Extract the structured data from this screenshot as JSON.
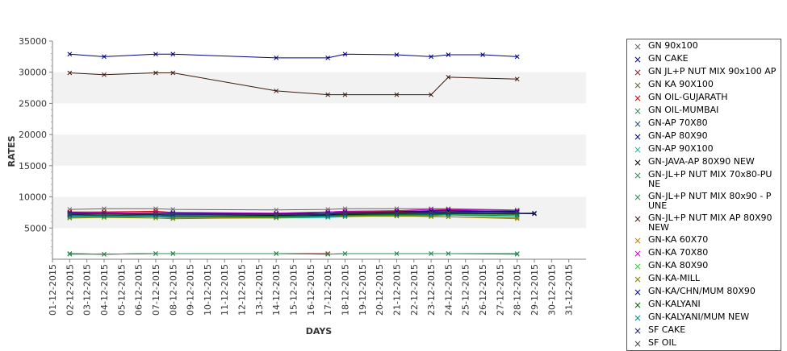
{
  "chart_data": {
    "type": "line",
    "xlabel": "DAYS",
    "ylabel": "RATES",
    "ylim": [
      0,
      35000
    ],
    "yticks": [
      5000,
      10000,
      15000,
      20000,
      25000,
      30000,
      35000
    ],
    "x": [
      "01-12-2015",
      "02-12-2015",
      "03-12-2015",
      "04-12-2015",
      "05-12-2015",
      "06-12-2015",
      "07-12-2015",
      "08-12-2015",
      "09-12-2015",
      "10-12-2015",
      "11-12-2015",
      "12-12-2015",
      "13-12-2015",
      "14-12-2015",
      "15-12-2015",
      "16-12-2015",
      "17-12-2015",
      "18-12-2015",
      "19-12-2015",
      "20-12-2015",
      "21-12-2015",
      "22-12-2015",
      "23-12-2015",
      "24-12-2015",
      "25-12-2015",
      "26-12-2015",
      "27-12-2015",
      "28-12-2015",
      "29-12-2015",
      "30-12-2015",
      "31-12-2015"
    ],
    "grid": "alternating horizontal bands",
    "legend": "right",
    "series": [
      {
        "name": "GN 90x100",
        "color": "#666666",
        "points": [
          [
            2,
            8000
          ],
          [
            4,
            8100
          ],
          [
            7,
            8100
          ],
          [
            8,
            8000
          ],
          [
            14,
            7900
          ],
          [
            17,
            8000
          ],
          [
            18,
            8100
          ],
          [
            21,
            8100
          ],
          [
            23,
            8100
          ],
          [
            24,
            8100
          ],
          [
            28,
            7900
          ]
        ]
      },
      {
        "name": "GN CAKE",
        "color": "#000080",
        "points": [
          [
            2,
            32900
          ],
          [
            4,
            32500
          ],
          [
            7,
            32900
          ],
          [
            8,
            32900
          ],
          [
            14,
            32300
          ],
          [
            17,
            32300
          ],
          [
            18,
            32900
          ],
          [
            21,
            32800
          ],
          [
            23,
            32500
          ],
          [
            24,
            32800
          ],
          [
            26,
            32800
          ],
          [
            28,
            32500
          ]
        ]
      },
      {
        "name": "GN JL+P NUT MIX 90x100 AP",
        "color": "#8b1a1a",
        "points": [
          [
            2,
            900
          ],
          [
            4,
            800
          ],
          [
            7,
            900
          ],
          [
            8,
            900
          ],
          [
            14,
            900
          ],
          [
            17,
            900
          ]
        ]
      },
      {
        "name": "GN KA 90X100",
        "color": "#556b2f",
        "points": [
          [
            2,
            7400
          ],
          [
            4,
            7500
          ],
          [
            7,
            7400
          ],
          [
            8,
            7300
          ],
          [
            14,
            7200
          ],
          [
            17,
            7400
          ],
          [
            18,
            7600
          ],
          [
            21,
            7600
          ],
          [
            23,
            7800
          ],
          [
            24,
            7700
          ],
          [
            28,
            7700
          ]
        ]
      },
      {
        "name": "GN OIL-GUJARATH",
        "color": "#cc0000",
        "points": [
          [
            2,
            7600
          ],
          [
            4,
            7600
          ],
          [
            7,
            7700
          ],
          [
            8,
            7500
          ],
          [
            14,
            7300
          ],
          [
            17,
            7600
          ],
          [
            18,
            7700
          ],
          [
            21,
            7700
          ],
          [
            23,
            7800
          ],
          [
            24,
            7900
          ],
          [
            28,
            7800
          ]
        ]
      },
      {
        "name": "GN OIL-MUMBAI",
        "color": "#2e8b57",
        "points": [
          [
            2,
            7200
          ],
          [
            4,
            7100
          ],
          [
            7,
            7200
          ],
          [
            8,
            7200
          ],
          [
            14,
            7000
          ],
          [
            17,
            7200
          ],
          [
            18,
            7300
          ],
          [
            21,
            7300
          ],
          [
            23,
            7400
          ],
          [
            24,
            7300
          ],
          [
            28,
            7300
          ]
        ]
      },
      {
        "name": "GN-AP 70X80",
        "color": "#1f4e79",
        "points": [
          [
            2,
            7000
          ],
          [
            4,
            7000
          ],
          [
            7,
            7000
          ],
          [
            8,
            6900
          ],
          [
            14,
            6800
          ],
          [
            17,
            7000
          ],
          [
            18,
            7100
          ],
          [
            21,
            7200
          ],
          [
            23,
            7200
          ],
          [
            24,
            7300
          ],
          [
            28,
            7400
          ]
        ]
      },
      {
        "name": "GN-AP 80X90",
        "color": "#00008b",
        "points": [
          [
            2,
            7300
          ],
          [
            4,
            7300
          ],
          [
            7,
            7300
          ],
          [
            8,
            7200
          ],
          [
            14,
            7100
          ],
          [
            17,
            7300
          ],
          [
            18,
            7400
          ],
          [
            21,
            7500
          ],
          [
            23,
            7600
          ],
          [
            24,
            7600
          ],
          [
            28,
            7700
          ]
        ]
      },
      {
        "name": "GN-AP 90X100",
        "color": "#20b2aa",
        "points": [
          [
            2,
            6700
          ],
          [
            4,
            6800
          ],
          [
            7,
            6800
          ],
          [
            8,
            6600
          ],
          [
            14,
            6600
          ],
          [
            17,
            6700
          ],
          [
            18,
            6800
          ],
          [
            21,
            7000
          ],
          [
            23,
            7000
          ],
          [
            24,
            7100
          ],
          [
            28,
            6800
          ]
        ]
      },
      {
        "name": "GN-JAVA-AP 80X90 NEW",
        "color": "#000000",
        "points": [
          [
            2,
            7100
          ],
          [
            4,
            7200
          ],
          [
            7,
            7100
          ],
          [
            8,
            7000
          ],
          [
            14,
            7000
          ],
          [
            17,
            7100
          ],
          [
            18,
            7200
          ],
          [
            21,
            7300
          ],
          [
            23,
            7400
          ],
          [
            24,
            7400
          ],
          [
            29,
            7300
          ]
        ]
      },
      {
        "name": "GN-JL+P NUT MIX 70x80-PUNE",
        "color": "#2e8b57",
        "points": [
          [
            2,
            800
          ],
          [
            4,
            800
          ],
          [
            7,
            900
          ],
          [
            8,
            900
          ],
          [
            14,
            900
          ],
          [
            17,
            800
          ],
          [
            18,
            900
          ],
          [
            21,
            900
          ],
          [
            23,
            900
          ],
          [
            24,
            900
          ],
          [
            28,
            900
          ]
        ]
      },
      {
        "name": "GN-JL+P NUT MIX 80x90 - PUNE",
        "color": "#2e8b57",
        "points": [
          [
            2,
            900
          ],
          [
            4,
            800
          ],
          [
            7,
            900
          ],
          [
            8,
            900
          ],
          [
            14,
            900
          ],
          [
            17,
            800
          ],
          [
            18,
            900
          ],
          [
            21,
            900
          ],
          [
            23,
            900
          ],
          [
            24,
            900
          ],
          [
            28,
            800
          ]
        ]
      },
      {
        "name": "GN-JL+P NUT MIX AP 80X90 NEW",
        "color": "#3b1a0f",
        "points": [
          [
            2,
            29900
          ],
          [
            4,
            29600
          ],
          [
            7,
            29900
          ],
          [
            8,
            29900
          ],
          [
            14,
            27000
          ],
          [
            17,
            26400
          ],
          [
            18,
            26400
          ],
          [
            21,
            26400
          ],
          [
            23,
            26400
          ],
          [
            24,
            29200
          ],
          [
            28,
            28900
          ]
        ]
      },
      {
        "name": "GN-KA 60X70",
        "color": "#b8860b",
        "points": [
          [
            2,
            6800
          ],
          [
            4,
            6700
          ],
          [
            7,
            6800
          ],
          [
            8,
            6700
          ],
          [
            14,
            6700
          ],
          [
            17,
            6900
          ],
          [
            18,
            7000
          ],
          [
            21,
            7000
          ],
          [
            23,
            6800
          ],
          [
            24,
            6800
          ],
          [
            28,
            6500
          ]
        ]
      },
      {
        "name": "GN-KA 70X80",
        "color": "#cc00cc",
        "points": [
          [
            2,
            7500
          ],
          [
            4,
            7400
          ],
          [
            7,
            7500
          ],
          [
            8,
            7500
          ],
          [
            14,
            7400
          ],
          [
            17,
            7600
          ],
          [
            18,
            7700
          ],
          [
            21,
            7800
          ],
          [
            23,
            8000
          ],
          [
            24,
            8000
          ],
          [
            28,
            7800
          ]
        ]
      },
      {
        "name": "GN-KA 80X90",
        "color": "#32cd32",
        "points": [
          [
            2,
            7000
          ],
          [
            4,
            7100
          ],
          [
            7,
            7000
          ],
          [
            8,
            7100
          ],
          [
            14,
            7100
          ],
          [
            17,
            7200
          ],
          [
            18,
            7300
          ],
          [
            21,
            7400
          ],
          [
            23,
            7200
          ],
          [
            24,
            7200
          ],
          [
            28,
            7200
          ]
        ]
      },
      {
        "name": "GN-KA-MILL",
        "color": "#808000",
        "points": [
          [
            2,
            6600
          ],
          [
            4,
            6700
          ],
          [
            7,
            6600
          ],
          [
            8,
            6500
          ],
          [
            14,
            6700
          ],
          [
            17,
            6800
          ],
          [
            18,
            6900
          ],
          [
            21,
            6900
          ],
          [
            23,
            6900
          ],
          [
            24,
            6800
          ],
          [
            28,
            6600
          ]
        ]
      },
      {
        "name": "GN-KA/CHN/MUM 80X90",
        "color": "#00008b",
        "points": [
          [
            2,
            7400
          ],
          [
            4,
            7300
          ],
          [
            7,
            7300
          ],
          [
            8,
            7400
          ],
          [
            14,
            7300
          ],
          [
            17,
            7400
          ],
          [
            18,
            7500
          ],
          [
            21,
            7600
          ],
          [
            23,
            7700
          ],
          [
            24,
            7800
          ],
          [
            28,
            7600
          ]
        ]
      },
      {
        "name": "GN-KALYANI",
        "color": "#006400",
        "points": [
          [
            2,
            7100
          ],
          [
            4,
            7000
          ],
          [
            7,
            7100
          ],
          [
            8,
            7000
          ],
          [
            14,
            6900
          ],
          [
            17,
            7000
          ],
          [
            18,
            7100
          ],
          [
            21,
            7200
          ],
          [
            23,
            7200
          ],
          [
            24,
            7300
          ],
          [
            28,
            7200
          ]
        ]
      },
      {
        "name": "GN-KALYANI/MUM NEW",
        "color": "#008b8b",
        "points": [
          [
            2,
            6900
          ],
          [
            4,
            6900
          ],
          [
            7,
            6900
          ],
          [
            8,
            6800
          ],
          [
            14,
            6800
          ],
          [
            17,
            6900
          ],
          [
            18,
            7000
          ],
          [
            21,
            7100
          ],
          [
            23,
            7100
          ],
          [
            24,
            7100
          ],
          [
            28,
            7000
          ]
        ]
      },
      {
        "name": "SF CAKE",
        "color": "#191970",
        "points": [
          [
            2,
            7200
          ],
          [
            4,
            7300
          ],
          [
            7,
            7200
          ],
          [
            8,
            7200
          ],
          [
            14,
            7100
          ],
          [
            17,
            7200
          ],
          [
            18,
            7300
          ],
          [
            21,
            7300
          ],
          [
            23,
            7400
          ],
          [
            24,
            7400
          ],
          [
            29,
            7400
          ]
        ]
      },
      {
        "name": "SF OIL",
        "color": "#444444",
        "points": [
          [
            2,
            7300
          ],
          [
            4,
            7200
          ],
          [
            7,
            7300
          ],
          [
            8,
            7300
          ],
          [
            14,
            7200
          ],
          [
            17,
            7300
          ],
          [
            18,
            7400
          ],
          [
            21,
            7400
          ],
          [
            23,
            7500
          ],
          [
            24,
            7500
          ],
          [
            28,
            7500
          ]
        ]
      }
    ]
  }
}
